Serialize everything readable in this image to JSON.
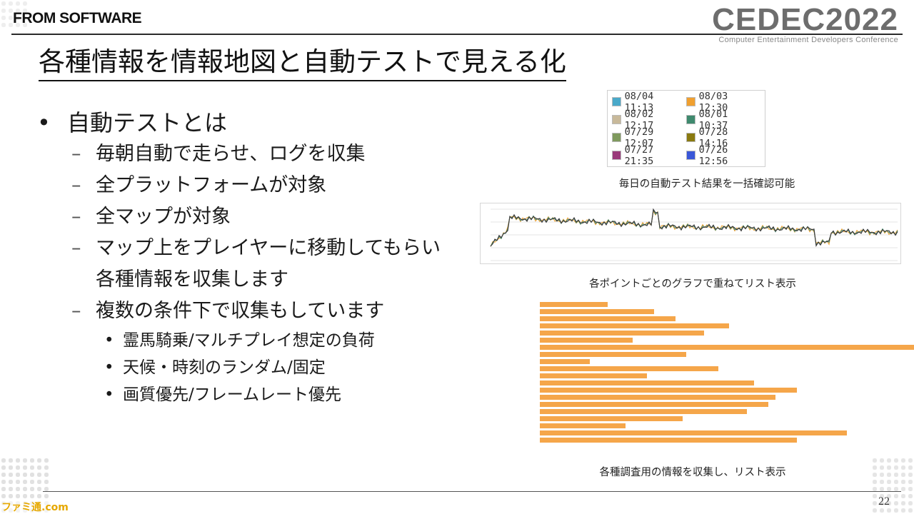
{
  "header": {
    "brand": "FROM SOFTWARE",
    "event_logo": "CEDEC2022",
    "event_subtitle": "Computer Entertainment Developers Conference"
  },
  "title": "各種情報を情報地図と自動テストで見える化",
  "bullets": {
    "main": "自動テストとは",
    "sub": [
      "毎朝自動で走らせ、ログを収集",
      "全プラットフォームが対象",
      "全マップが対象",
      "マップ上をプレイヤーに移動してもらい",
      "各種情報を収集します",
      "複数の条件下で収集もしています"
    ],
    "subsub": [
      "霊馬騎乗/マルチプレイ想定の負荷",
      "天候・時刻のランダム/固定",
      "画質優先/フレームレート優先"
    ]
  },
  "legend": [
    {
      "label": "08/04 11:13",
      "color": "#4aa9c9"
    },
    {
      "label": "08/03 12:30",
      "color": "#f0a030"
    },
    {
      "label": "08/02 12:17",
      "color": "#c8b99a"
    },
    {
      "label": "08/01 10:37",
      "color": "#3f8a6e"
    },
    {
      "label": "07/29 12:07",
      "color": "#7f9a5e"
    },
    {
      "label": "07/28 14:16",
      "color": "#8a7a10"
    },
    {
      "label": "07/27 21:35",
      "color": "#9a3a7a"
    },
    {
      "label": "07/26 12:56",
      "color": "#3a57d8"
    }
  ],
  "captions": {
    "legend_caption": "毎日の自動テスト結果を一括確認可能",
    "graph_caption": "各ポイントごとのグラフで重ねてリスト表示",
    "table_caption": "各種調査用の情報を収集し、リスト表示"
  },
  "page_number": "22",
  "watermark": "ファミ通.com"
}
